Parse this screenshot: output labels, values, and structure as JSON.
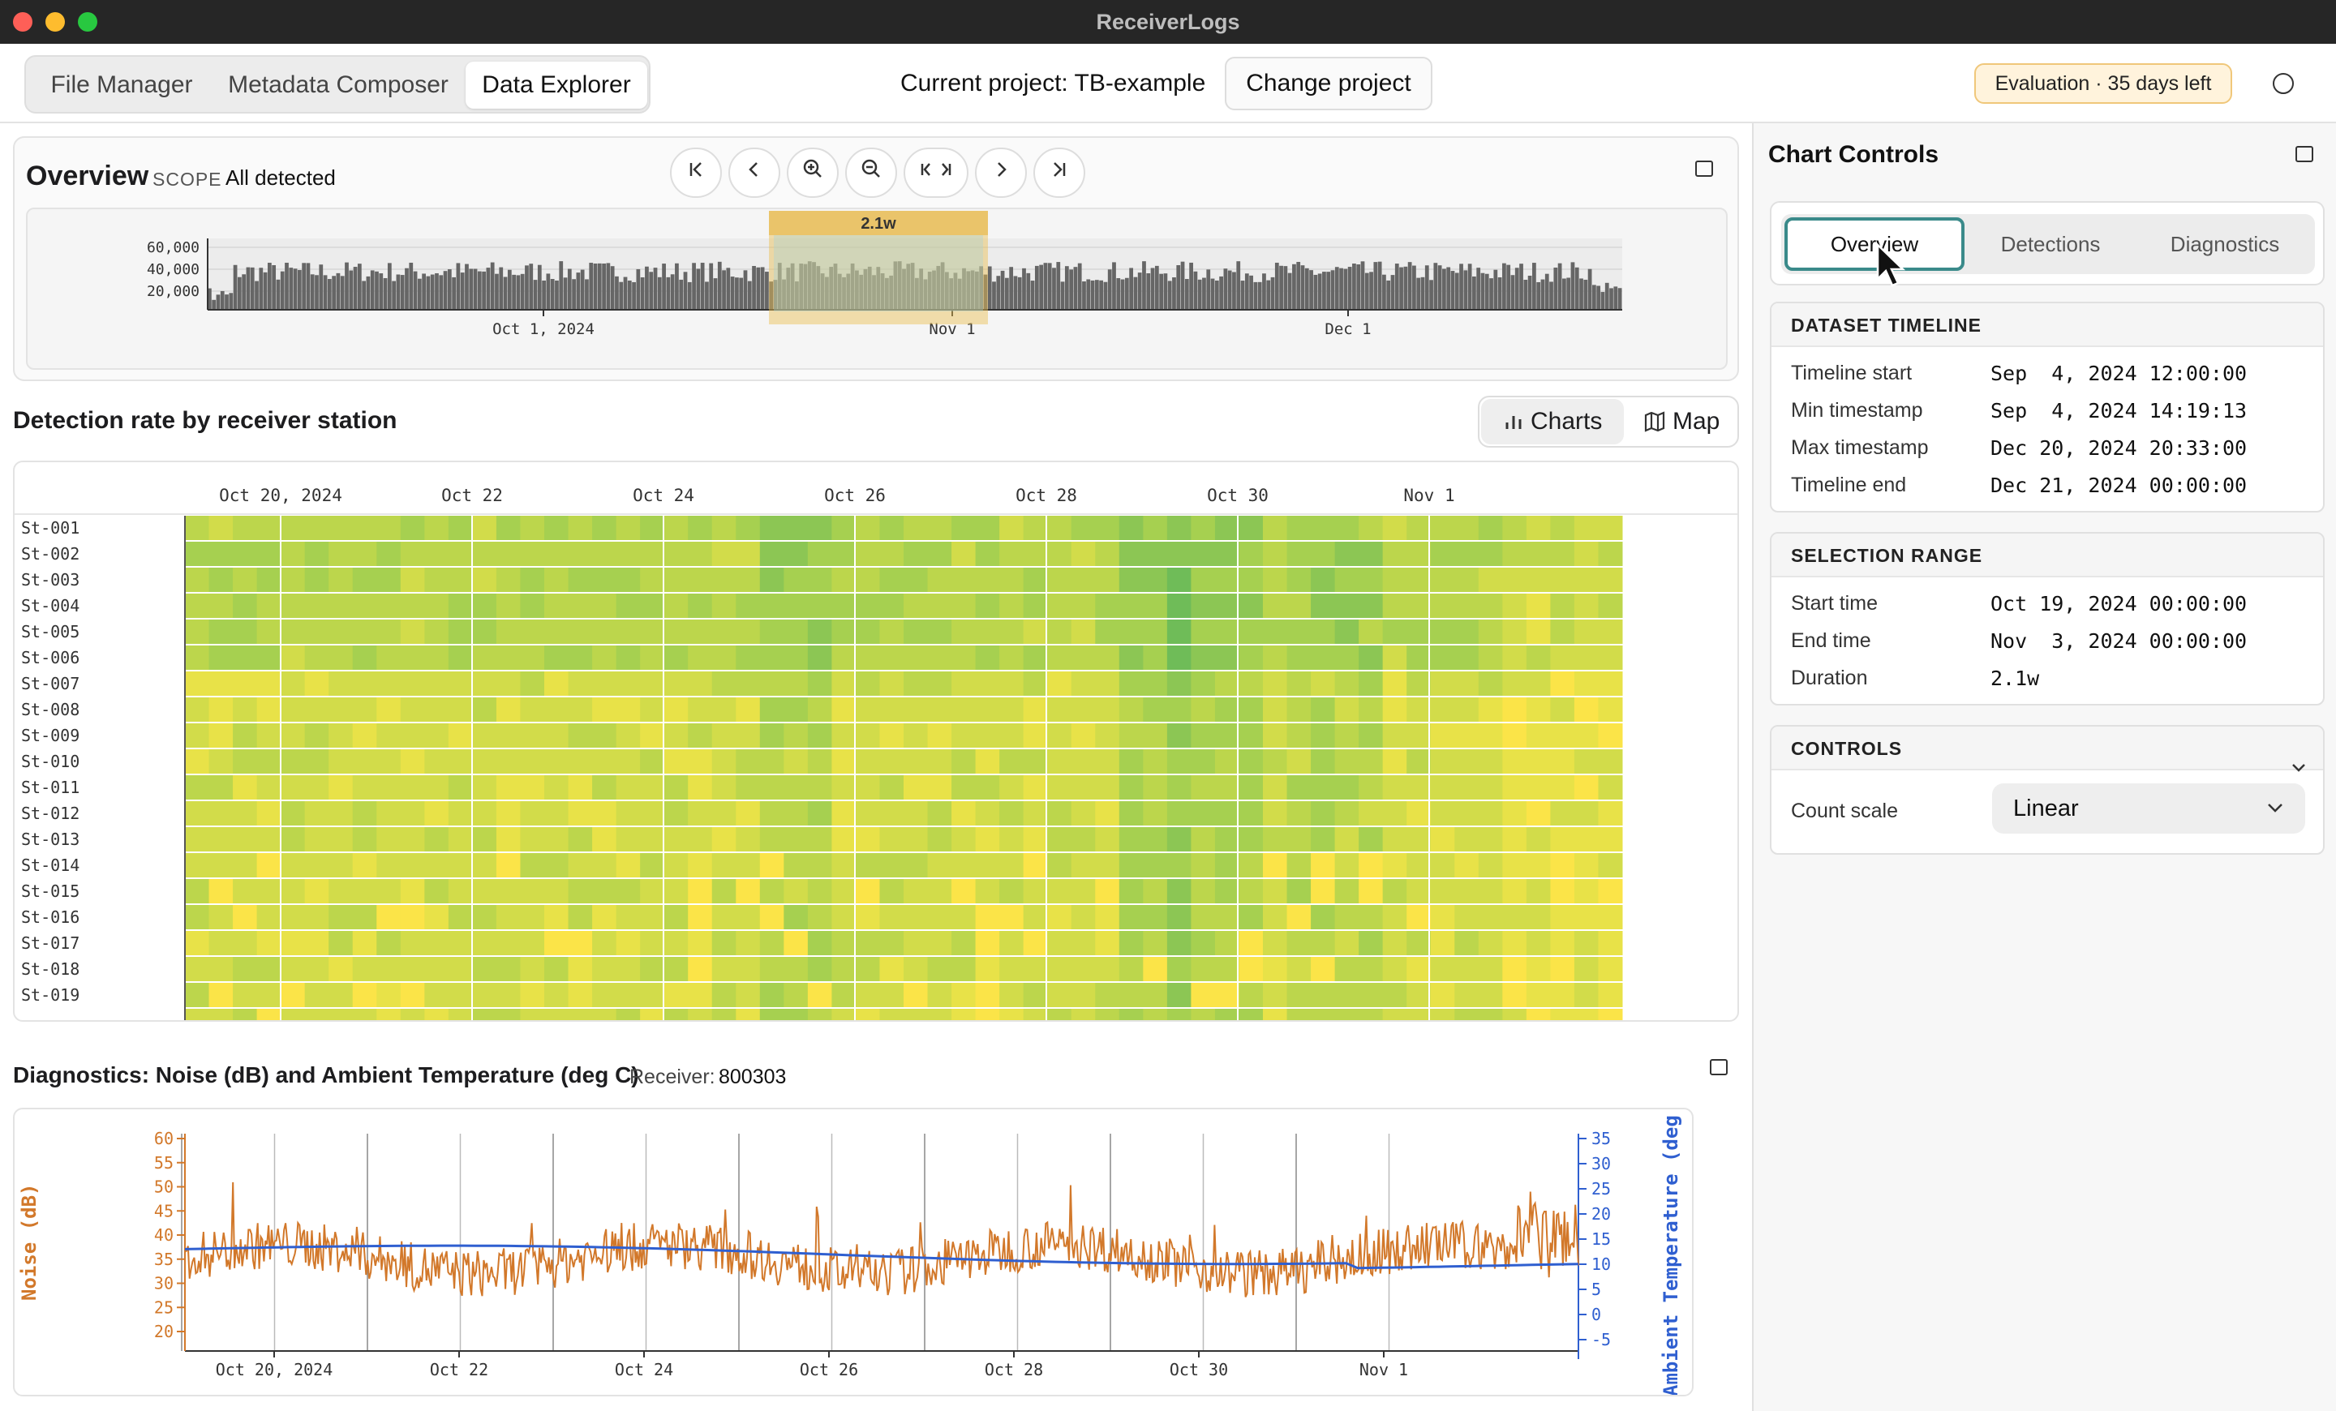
{
  "window": {
    "title": "ReceiverLogs"
  },
  "toolbar": {
    "tabs": [
      {
        "label": "File Manager"
      },
      {
        "label": "Metadata Composer"
      },
      {
        "label": "Data Explorer"
      }
    ],
    "active_tab": "Data Explorer",
    "project_label": "Current project: TB-example",
    "change_project": "Change project",
    "eval_badge": "Evaluation · 35 days left"
  },
  "overview": {
    "title": "Overview",
    "scope_label": "SCOPE",
    "scope_value": "All detected",
    "nav_icons": [
      "first-icon",
      "prev-icon",
      "zoom-in-icon",
      "zoom-out-icon",
      "fit-range-icon",
      "next-icon",
      "last-icon"
    ],
    "selection_label": "2.1w",
    "y_ticks": [
      "60,000",
      "40,000",
      "20,000"
    ],
    "x_ticks": [
      "Oct 1, 2024",
      "Nov 1",
      "Dec 1"
    ]
  },
  "heatmap_section": {
    "title": "Detection rate by receiver station",
    "charts_btn": "Charts",
    "map_btn": "Map",
    "x_ticks": [
      "Oct 20, 2024",
      "Oct 22",
      "Oct 24",
      "Oct 26",
      "Oct 28",
      "Oct 30",
      "Nov 1"
    ],
    "rows": [
      "St-001",
      "St-002",
      "St-003",
      "St-004",
      "St-005",
      "St-006",
      "St-007",
      "St-008",
      "St-009",
      "St-010",
      "St-011",
      "St-012",
      "St-013",
      "St-014",
      "St-015",
      "St-016",
      "St-017",
      "St-018",
      "St-019"
    ]
  },
  "diagnostics": {
    "title": "Diagnostics: Noise (dB) and Ambient Temperature (deg C)",
    "receiver_label": "Receiver:",
    "receiver_value": "800303",
    "left_axis_label": "Noise (dB)",
    "right_axis_label": "Ambient Temperature (deg",
    "left_ticks": [
      "60",
      "55",
      "50",
      "45",
      "40",
      "35",
      "30",
      "25",
      "20"
    ],
    "right_ticks": [
      "35",
      "30",
      "25",
      "20",
      "15",
      "10",
      "5",
      "0",
      "-5"
    ],
    "x_ticks": [
      "Oct 20, 2024",
      "Oct 22",
      "Oct 24",
      "Oct 26",
      "Oct 28",
      "Oct 30",
      "Nov 1"
    ],
    "noise_color": "#d2782a",
    "temp_color": "#2f5fd0"
  },
  "panel": {
    "title": "Chart Controls",
    "tabs": [
      {
        "label": "Overview"
      },
      {
        "label": "Detections"
      },
      {
        "label": "Diagnostics"
      }
    ],
    "dataset_timeline": {
      "heading": "DATASET TIMELINE",
      "rows": [
        {
          "label": "Timeline start",
          "value": "Sep  4, 2024 12:00:00"
        },
        {
          "label": "Min timestamp",
          "value": "Sep  4, 2024 14:19:13"
        },
        {
          "label": "Max timestamp",
          "value": "Dec 20, 2024 20:33:00"
        },
        {
          "label": "Timeline end",
          "value": "Dec 21, 2024 00:00:00"
        }
      ]
    },
    "selection_range": {
      "heading": "SELECTION RANGE",
      "rows": [
        {
          "label": "Start time",
          "value": "Oct 19, 2024 00:00:00"
        },
        {
          "label": "End time",
          "value": "Nov  3, 2024 00:00:00"
        },
        {
          "label": "Duration",
          "value": "2.1w"
        }
      ]
    },
    "controls": {
      "heading": "CONTROLS",
      "count_scale_label": "Count scale",
      "count_scale_value": "Linear"
    }
  }
}
